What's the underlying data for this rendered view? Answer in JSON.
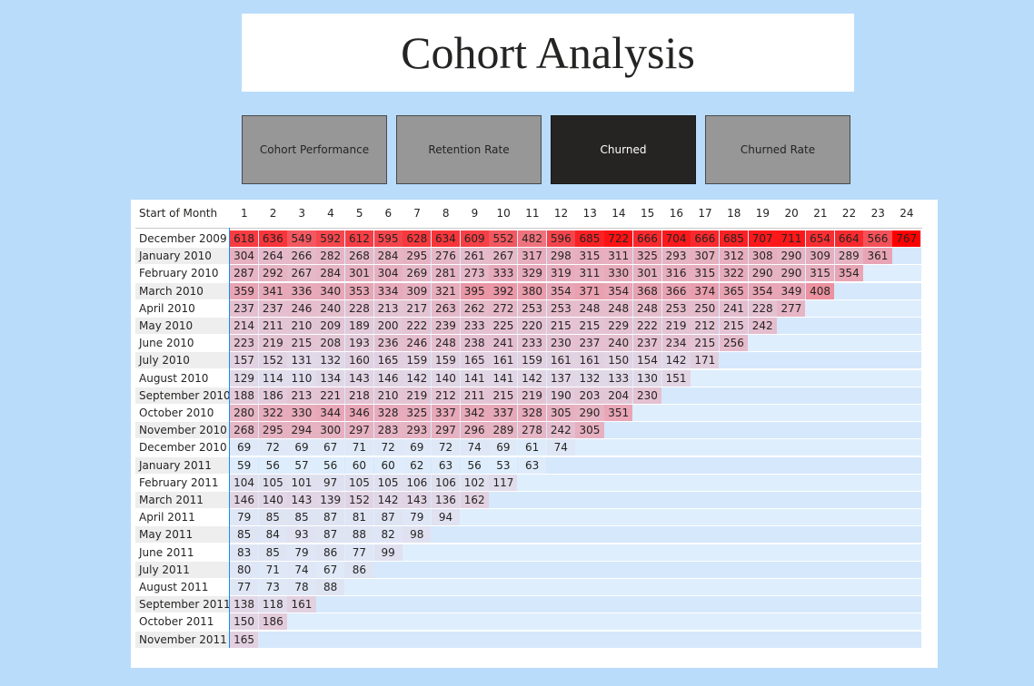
{
  "title": "Cohort Analysis",
  "tabs": [
    {
      "label": "Cohort Performance",
      "active": false
    },
    {
      "label": "Retention Rate",
      "active": false
    },
    {
      "label": "Churned",
      "active": true
    },
    {
      "label": "Churned Rate",
      "active": false
    }
  ],
  "table": {
    "row_header": "Start of Month",
    "columns": [
      "1",
      "2",
      "3",
      "4",
      "5",
      "6",
      "7",
      "8",
      "9",
      "10",
      "11",
      "12",
      "13",
      "14",
      "15",
      "16",
      "17",
      "18",
      "19",
      "20",
      "21",
      "22",
      "23",
      "24"
    ],
    "colors": {
      "low": "#deeefd",
      "mid": "#e8a4b4",
      "high": "#ff0000"
    },
    "value_range": [
      53,
      767
    ],
    "rows": [
      {
        "label": "December 2009",
        "values": [
          618,
          636,
          549,
          592,
          612,
          595,
          628,
          634,
          609,
          552,
          482,
          596,
          685,
          722,
          666,
          704,
          666,
          685,
          707,
          711,
          654,
          664,
          566,
          767
        ]
      },
      {
        "label": "January 2010",
        "values": [
          304,
          264,
          266,
          282,
          268,
          284,
          295,
          276,
          261,
          267,
          317,
          298,
          315,
          311,
          325,
          293,
          307,
          312,
          308,
          290,
          309,
          289,
          361
        ]
      },
      {
        "label": "February 2010",
        "values": [
          287,
          292,
          267,
          284,
          301,
          304,
          269,
          281,
          273,
          333,
          329,
          319,
          311,
          330,
          301,
          316,
          315,
          322,
          290,
          290,
          315,
          354
        ]
      },
      {
        "label": "March 2010",
        "values": [
          359,
          341,
          336,
          340,
          353,
          334,
          309,
          321,
          395,
          392,
          380,
          354,
          371,
          354,
          368,
          366,
          374,
          365,
          354,
          349,
          408
        ]
      },
      {
        "label": "April 2010",
        "values": [
          237,
          237,
          246,
          240,
          228,
          213,
          217,
          263,
          262,
          272,
          253,
          253,
          248,
          248,
          248,
          253,
          250,
          241,
          228,
          277
        ]
      },
      {
        "label": "May 2010",
        "values": [
          214,
          211,
          210,
          209,
          189,
          200,
          222,
          239,
          233,
          225,
          220,
          215,
          215,
          229,
          222,
          219,
          212,
          215,
          242
        ]
      },
      {
        "label": "June 2010",
        "values": [
          223,
          219,
          215,
          208,
          193,
          236,
          246,
          248,
          238,
          241,
          233,
          230,
          237,
          240,
          237,
          234,
          215,
          256
        ]
      },
      {
        "label": "July 2010",
        "values": [
          157,
          152,
          131,
          132,
          160,
          165,
          159,
          159,
          165,
          161,
          159,
          161,
          161,
          150,
          154,
          142,
          171
        ]
      },
      {
        "label": "August 2010",
        "values": [
          129,
          114,
          110,
          134,
          143,
          146,
          142,
          140,
          141,
          141,
          142,
          137,
          132,
          133,
          130,
          151
        ]
      },
      {
        "label": "September 2010",
        "values": [
          188,
          186,
          213,
          221,
          218,
          210,
          219,
          212,
          211,
          215,
          219,
          190,
          203,
          204,
          230
        ]
      },
      {
        "label": "October 2010",
        "values": [
          280,
          322,
          330,
          344,
          346,
          328,
          325,
          337,
          342,
          337,
          328,
          305,
          290,
          351
        ]
      },
      {
        "label": "November 2010",
        "values": [
          268,
          295,
          294,
          300,
          297,
          283,
          293,
          297,
          296,
          289,
          278,
          242,
          305
        ]
      },
      {
        "label": "December 2010",
        "values": [
          69,
          72,
          69,
          67,
          71,
          72,
          69,
          72,
          74,
          69,
          61,
          74
        ]
      },
      {
        "label": "January 2011",
        "values": [
          59,
          56,
          57,
          56,
          60,
          60,
          62,
          63,
          56,
          53,
          63
        ]
      },
      {
        "label": "February 2011",
        "values": [
          104,
          105,
          101,
          97,
          105,
          105,
          106,
          106,
          102,
          117
        ]
      },
      {
        "label": "March 2011",
        "values": [
          146,
          140,
          143,
          139,
          152,
          142,
          143,
          136,
          162
        ]
      },
      {
        "label": "April 2011",
        "values": [
          79,
          85,
          85,
          87,
          81,
          87,
          79,
          94
        ]
      },
      {
        "label": "May 2011",
        "values": [
          85,
          84,
          93,
          87,
          88,
          82,
          98
        ]
      },
      {
        "label": "June 2011",
        "values": [
          83,
          85,
          79,
          86,
          77,
          99
        ]
      },
      {
        "label": "July 2011",
        "values": [
          80,
          71,
          74,
          67,
          86
        ]
      },
      {
        "label": "August 2011",
        "values": [
          77,
          73,
          78,
          88
        ]
      },
      {
        "label": "September 2011",
        "values": [
          138,
          118,
          161
        ]
      },
      {
        "label": "October 2011",
        "values": [
          150,
          186
        ]
      },
      {
        "label": "November 2011",
        "values": [
          165
        ]
      }
    ]
  }
}
